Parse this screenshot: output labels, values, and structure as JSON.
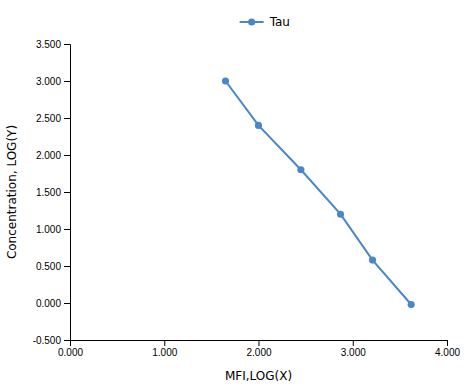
{
  "chart_data": {
    "type": "line",
    "x": [
      1.65,
      2.0,
      2.45,
      2.87,
      3.21,
      3.62
    ],
    "series": [
      {
        "name": "Tau",
        "color": "#4A86C8",
        "marker": "circle",
        "values": [
          3.0,
          2.4,
          1.8,
          1.2,
          0.58,
          -0.02
        ]
      }
    ],
    "xlabel": "MFI,LOG(X)",
    "ylabel": "Concentration, LOG(Y)",
    "xlim": [
      0.0,
      4.0
    ],
    "ylim": [
      -0.5,
      3.5
    ],
    "xticks": [
      {
        "value": 0.0,
        "label": "0.000"
      },
      {
        "value": 1.0,
        "label": "1.000"
      },
      {
        "value": 2.0,
        "label": "2.000"
      },
      {
        "value": 3.0,
        "label": "3.000"
      },
      {
        "value": 4.0,
        "label": "4.000"
      }
    ],
    "yticks": [
      {
        "value": -0.5,
        "label": "-0.500"
      },
      {
        "value": 0.0,
        "label": "0.000"
      },
      {
        "value": 0.5,
        "label": "0.500"
      },
      {
        "value": 1.0,
        "label": "1.000"
      },
      {
        "value": 1.5,
        "label": "1.500"
      },
      {
        "value": 2.0,
        "label": "2.000"
      },
      {
        "value": 2.5,
        "label": "2.500"
      },
      {
        "value": 3.0,
        "label": "3.000"
      },
      {
        "value": 3.5,
        "label": "3.500"
      }
    ],
    "grid": false,
    "legend": "top"
  }
}
